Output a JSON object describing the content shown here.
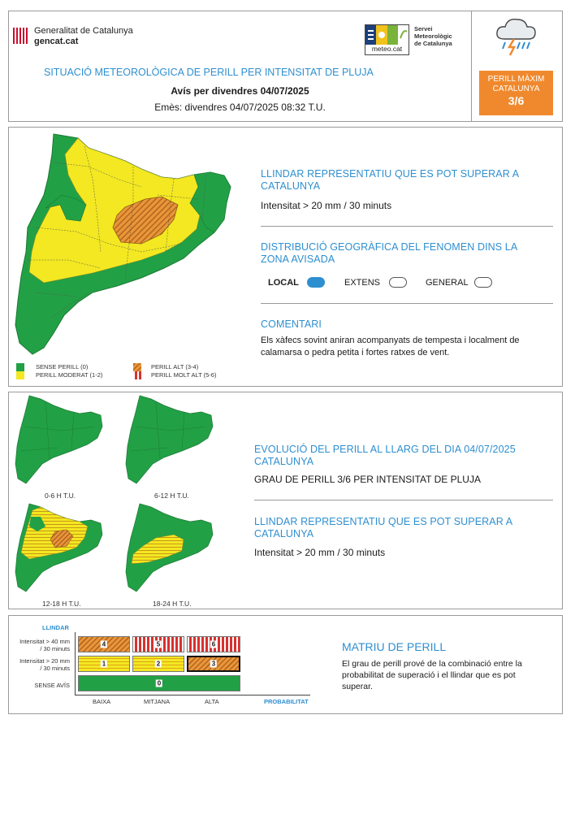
{
  "header": {
    "gov_name": "Generalitat de Catalunya",
    "gov_site": "gencat.cat",
    "meteo_site": "meteo.cat",
    "smc_line1": "Servei",
    "smc_line2": "Meteorològic",
    "smc_line3": "de Catalunya",
    "title": "SITUACIÓ METEOROLÒGICA DE PERILL PER INTENSITAT DE PLUJA",
    "subtitle": "Avís per divendres 04/07/2025",
    "emitted": "Emès: divendres 04/07/2025 08:32 T.U.",
    "max_label_1": "PERILL MÀXIM",
    "max_label_2": "CATALUNYA",
    "max_value": "3/6",
    "max_color": "#f0892e",
    "weather_icon": "thunderstorm-rain-icon"
  },
  "section1": {
    "threshold_title": "LLINDAR REPRESENTATIU QUE ES POT SUPERAR A CATALUNYA",
    "threshold_value": "Intensitat > 20 mm / 30 minuts",
    "distribution_title": "DISTRIBUCIÓ GEOGRÀFICA DEL FENOMEN DINS LA ZONA AVISADA",
    "dist_local": "LOCAL",
    "dist_extens": "EXTENS",
    "dist_general": "GENERAL",
    "dist_selected": "LOCAL",
    "comment_title": "COMENTARI",
    "comment_text": "Els xàfecs sovint aniran acompanyats de tempesta i localment de calamarsa o pedra petita i fortes ratxes de vent.",
    "legend": {
      "none": "SENSE PERILL (0)",
      "moderate": "PERILL MODERAT (1-2)",
      "high": "PERILL ALT (3-4)",
      "very_high": "PERILL MOLT ALT (5-6)"
    }
  },
  "section2": {
    "evolution_title": "EVOLUCIÓ DEL PERILL AL LLARG DEL DIA 04/07/2025 CATALUNYA",
    "evolution_value": "GRAU DE PERILL 3/6 PER INTENSITAT DE PLUJA",
    "threshold_title": "LLINDAR REPRESENTATIU QUE ES POT SUPERAR A CATALUNYA",
    "threshold_value": "Intensitat > 20 mm / 30 minuts",
    "periods": [
      "0-6 H T.U.",
      "6-12 H T.U.",
      "12-18 H T.U.",
      "18-24 H T.U."
    ]
  },
  "matrix": {
    "y_axis_title": "LLINDAR",
    "row_top": "Intensitat > 40 mm / 30 minuts",
    "row_mid": "Intensitat > 20 mm / 30 minuts",
    "row_bottom": "SENSE AVÍS",
    "cols": [
      "BAIXA",
      "MITJANA",
      "ALTA"
    ],
    "x_axis_title": "PROBABILITAT",
    "cell_values": [
      "4",
      "5",
      "6",
      "1",
      "2",
      "3",
      "0"
    ],
    "title": "MATRIU DE PERILL",
    "description": "El grau de perill prové de la combinació entre la probabilitat de superació i el llindar que es pot superar."
  },
  "colors": {
    "green": "#22a045",
    "yellow": "#f3e821",
    "orange": "#e8963a",
    "red": "#d8312f",
    "accent_blue": "#2e8fd0"
  }
}
